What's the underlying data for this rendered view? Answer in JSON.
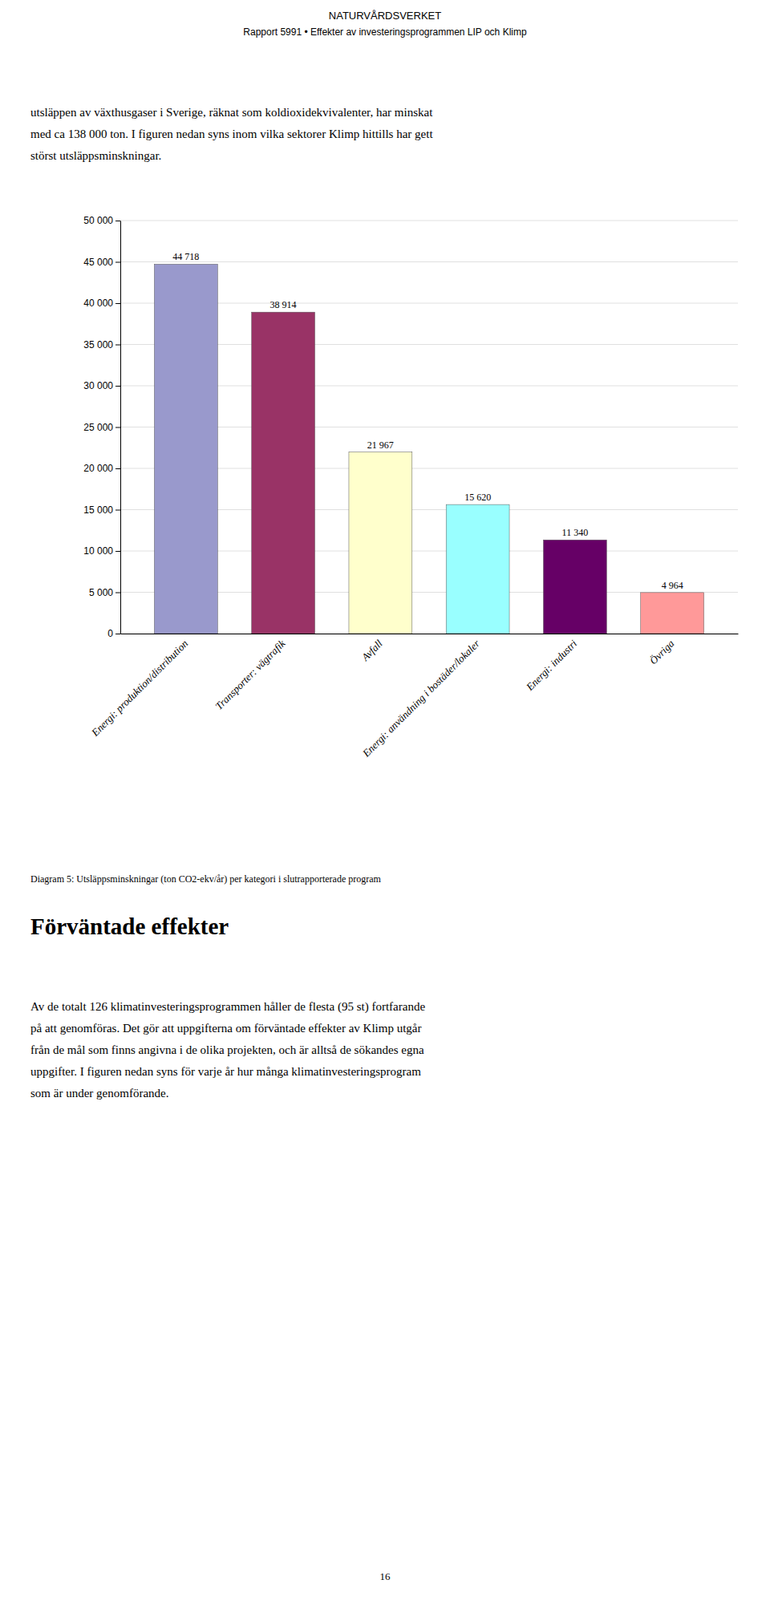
{
  "header": "NATURVÅRDSVERKET",
  "subheader": "Rapport 5991 • Effekter av investeringsprogrammen LIP och Klimp",
  "intro": [
    "utsläppen av växthusgaser i Sverige, räknat som koldioxidekvivalenter, har minskat",
    "med ca 138 000 ton. I figuren nedan syns inom vilka sektorer Klimp hittills har gett",
    "störst utsläppsminskningar."
  ],
  "section_title": "Förväntade effekter",
  "body": [
    "Av de totalt 126 klimatinvesteringsprogrammen håller de flesta (95 st) fortfarande",
    "på att genomföras. Det gör att uppgifterna om förväntade effekter av Klimp utgår",
    "från de mål som finns angivna i de olika projekten, och är alltså de sökandes egna",
    "uppgifter. I figuren nedan syns för varje år hur många klimatinvesteringsprogram",
    "som är under genomförande."
  ],
  "page_number": "16",
  "chart_data": {
    "type": "bar",
    "caption": "Diagram 5: Utsläppsminskningar (ton CO2-ekv/år) per kategori i slutrapporterade program",
    "categories": [
      "Energi: produktion/distribution",
      "Transporter: vägtrafik",
      "Avfall",
      "Energi: användning i bostäder/lokaler",
      "Energi: industri",
      "Övriga"
    ],
    "values": [
      44718,
      38914,
      21967,
      15620,
      11340,
      4964
    ],
    "value_labels": [
      "44 718",
      "38 914",
      "21 967",
      "15 620",
      "11 340",
      "4 964"
    ],
    "data_labels": true,
    "colors": [
      "#9999cc",
      "#993366",
      "#ffffcc",
      "#99ffff",
      "#660066",
      "#ff9999"
    ],
    "ylim": [
      0,
      50000
    ],
    "yticks": [
      0,
      {
        "value": 5000,
        "label": "5 000"
      },
      {
        "value": 10000,
        "label": "10 000"
      },
      {
        "value": 15000,
        "label": "15 000"
      },
      {
        "value": 20000,
        "label": "20 000"
      },
      {
        "value": 25000,
        "label": "25 000"
      },
      {
        "value": 30000,
        "label": "30 000"
      },
      {
        "value": 35000,
        "label": "35 000"
      },
      {
        "value": 40000,
        "label": "40 000"
      },
      {
        "value": 45000,
        "label": "45 000"
      },
      {
        "value": 50000,
        "label": "50 000"
      }
    ],
    "grid": true
  }
}
